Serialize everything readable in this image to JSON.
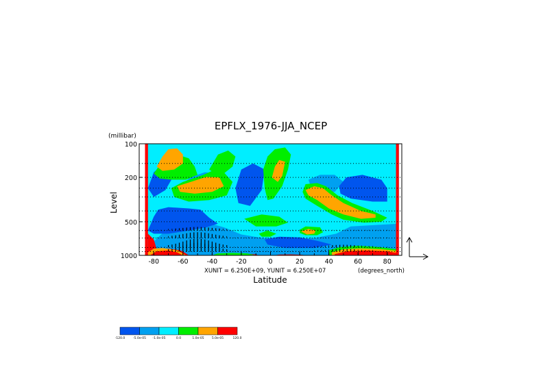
{
  "chart_data": {
    "type": "heatmap",
    "title": "EPFLX_1976-JJA_NCEP",
    "xlabel": "Latitude",
    "ylabel": "Level",
    "y_unit_label": "(millibar)",
    "x_unit_label": "(degrees_north)",
    "vector_scale_text": "XUNIT = 6.250E+09, YUNIT = 6.250E+07",
    "x_range": [
      -90,
      90
    ],
    "y_range": [
      1000,
      100
    ],
    "y_scale": "log",
    "grid": true,
    "x_ticks": [
      {
        "value": -80,
        "label": "-80"
      },
      {
        "value": -60,
        "label": "-60"
      },
      {
        "value": -40,
        "label": "-40"
      },
      {
        "value": -20,
        "label": "-20"
      },
      {
        "value": 0,
        "label": "0"
      },
      {
        "value": 20,
        "label": "20"
      },
      {
        "value": 40,
        "label": "40"
      },
      {
        "value": 60,
        "label": "60"
      },
      {
        "value": 80,
        "label": "80"
      }
    ],
    "y_ticks": [
      {
        "value": 100,
        "label": "100"
      },
      {
        "value": 200,
        "label": "200"
      },
      {
        "value": 500,
        "label": "500"
      },
      {
        "value": 1000,
        "label": "1000"
      }
    ],
    "levels_mb": [
      1000,
      925,
      850,
      700,
      600,
      500,
      400,
      300,
      250,
      200,
      150,
      100
    ],
    "colorbar": {
      "colors": [
        "#0055ee",
        "#00a0f0",
        "#00eeff",
        "#00ee00",
        "#ffa500",
        "#ff0000"
      ],
      "labels": [
        "-120.0",
        "-5.0e-05",
        "-1.0e-05",
        "0.0",
        "1.0e-05",
        "5.0e-05",
        "120.0"
      ]
    },
    "regions": [
      {
        "c": 1,
        "pts": [
          [
            -86,
            1000
          ],
          [
            88,
            1000
          ],
          [
            88,
            100
          ],
          [
            -86,
            100
          ]
        ]
      },
      {
        "c": 2,
        "pts": [
          [
            -86,
            900
          ],
          [
            -75,
            650
          ],
          [
            -64,
            520
          ],
          [
            -46,
            500
          ],
          [
            -32,
            560
          ],
          [
            -20,
            650
          ],
          [
            -5,
            700
          ],
          [
            15,
            710
          ],
          [
            30,
            700
          ],
          [
            45,
            640
          ],
          [
            55,
            550
          ],
          [
            88,
            520
          ],
          [
            88,
            100
          ],
          [
            -86,
            100
          ]
        ]
      },
      {
        "c": 0,
        "pts": [
          [
            -84,
            600
          ],
          [
            -80,
            450
          ],
          [
            -77,
            390
          ],
          [
            -70,
            370
          ],
          [
            -56,
            380
          ],
          [
            -48,
            390
          ],
          [
            -42,
            460
          ],
          [
            -36,
            520
          ],
          [
            -44,
            560
          ],
          [
            -56,
            600
          ],
          [
            -70,
            640
          ],
          [
            -80,
            640
          ]
        ]
      },
      {
        "c": 0,
        "pts": [
          [
            -84,
            250
          ],
          [
            -80,
            180
          ],
          [
            -74,
            155
          ],
          [
            -68,
            160
          ],
          [
            -66,
            190
          ],
          [
            -72,
            260
          ],
          [
            -80,
            300
          ]
        ]
      },
      {
        "c": 0,
        "pts": [
          [
            -24,
            250
          ],
          [
            -20,
            170
          ],
          [
            -12,
            150
          ],
          [
            -4,
            170
          ],
          [
            -6,
            260
          ],
          [
            -14,
            360
          ],
          [
            -22,
            340
          ]
        ]
      },
      {
        "c": 1,
        "pts": [
          [
            -62,
            240
          ],
          [
            -55,
            200
          ],
          [
            -45,
            180
          ],
          [
            -33,
            185
          ],
          [
            -28,
            230
          ],
          [
            -36,
            300
          ],
          [
            -50,
            310
          ],
          [
            -60,
            290
          ]
        ]
      },
      {
        "c": 1,
        "pts": [
          [
            26,
            210
          ],
          [
            34,
            190
          ],
          [
            44,
            190
          ],
          [
            50,
            220
          ],
          [
            44,
            270
          ],
          [
            34,
            270
          ],
          [
            28,
            250
          ]
        ]
      },
      {
        "c": 0,
        "pts": [
          [
            47,
            240
          ],
          [
            52,
            200
          ],
          [
            63,
            190
          ],
          [
            76,
            210
          ],
          [
            80,
            250
          ],
          [
            80,
            330
          ],
          [
            70,
            330
          ],
          [
            55,
            310
          ],
          [
            48,
            280
          ]
        ]
      },
      {
        "c": 0,
        "pts": [
          [
            -4,
            720
          ],
          [
            6,
            680
          ],
          [
            20,
            690
          ],
          [
            32,
            740
          ],
          [
            42,
            800
          ],
          [
            30,
            860
          ],
          [
            10,
            860
          ],
          [
            -2,
            800
          ]
        ]
      },
      {
        "c": 3,
        "pts": [
          [
            -80,
            185
          ],
          [
            -76,
            155
          ],
          [
            -70,
            135
          ],
          [
            -64,
            125
          ],
          [
            -56,
            135
          ],
          [
            -52,
            160
          ],
          [
            -50,
            190
          ],
          [
            -58,
            210
          ],
          [
            -68,
            210
          ],
          [
            -76,
            205
          ]
        ]
      },
      {
        "c": 4,
        "pts": [
          [
            -78,
            160
          ],
          [
            -74,
            130
          ],
          [
            -70,
            112
          ],
          [
            -64,
            110
          ],
          [
            -60,
            125
          ],
          [
            -60,
            150
          ],
          [
            -66,
            170
          ],
          [
            -74,
            175
          ]
        ]
      },
      {
        "c": 3,
        "pts": [
          [
            -68,
            250
          ],
          [
            -60,
            220
          ],
          [
            -46,
            190
          ],
          [
            -38,
            170
          ],
          [
            -32,
            180
          ],
          [
            -26,
            220
          ],
          [
            -30,
            290
          ],
          [
            -42,
            320
          ],
          [
            -56,
            330
          ],
          [
            -66,
            300
          ]
        ]
      },
      {
        "c": 4,
        "pts": [
          [
            -64,
            240
          ],
          [
            -54,
            218
          ],
          [
            -44,
            198
          ],
          [
            -35,
            200
          ],
          [
            -32,
            240
          ],
          [
            -40,
            270
          ],
          [
            -52,
            280
          ],
          [
            -62,
            270
          ]
        ]
      },
      {
        "c": 3,
        "pts": [
          [
            -42,
            170
          ],
          [
            -36,
            125
          ],
          [
            -29,
            115
          ],
          [
            -24,
            130
          ],
          [
            -26,
            160
          ],
          [
            -32,
            185
          ],
          [
            -38,
            185
          ]
        ]
      },
      {
        "c": 3,
        "pts": [
          [
            -5,
            170
          ],
          [
            -2,
            130
          ],
          [
            3,
            112
          ],
          [
            10,
            108
          ],
          [
            14,
            125
          ],
          [
            12,
            170
          ],
          [
            8,
            240
          ],
          [
            2,
            310
          ],
          [
            -2,
            320
          ],
          [
            -4,
            250
          ]
        ]
      },
      {
        "c": 4,
        "pts": [
          [
            1,
            200
          ],
          [
            3,
            160
          ],
          [
            6,
            140
          ],
          [
            10,
            145
          ],
          [
            8,
            195
          ],
          [
            5,
            220
          ]
        ]
      },
      {
        "c": 3,
        "pts": [
          [
            -18,
            470
          ],
          [
            -6,
            430
          ],
          [
            6,
            450
          ],
          [
            12,
            510
          ],
          [
            4,
            550
          ],
          [
            -10,
            550
          ]
        ]
      },
      {
        "c": 3,
        "pts": [
          [
            -8,
            640
          ],
          [
            -2,
            600
          ],
          [
            4,
            640
          ],
          [
            0,
            680
          ],
          [
            -6,
            680
          ]
        ]
      },
      {
        "c": 3,
        "pts": [
          [
            20,
            590
          ],
          [
            24,
            550
          ],
          [
            34,
            560
          ],
          [
            36,
            620
          ],
          [
            32,
            660
          ],
          [
            24,
            660
          ],
          [
            20,
            630
          ]
        ]
      },
      {
        "c": 4,
        "pts": [
          [
            21,
            610
          ],
          [
            26,
            580
          ],
          [
            31,
            600
          ],
          [
            30,
            640
          ],
          [
            25,
            650
          ]
        ]
      },
      {
        "c": 3,
        "pts": [
          [
            22,
            270
          ],
          [
            24,
            230
          ],
          [
            32,
            225
          ],
          [
            38,
            240
          ],
          [
            46,
            290
          ],
          [
            56,
            340
          ],
          [
            70,
            400
          ],
          [
            80,
            460
          ],
          [
            76,
            500
          ],
          [
            64,
            510
          ],
          [
            50,
            480
          ],
          [
            42,
            430
          ],
          [
            32,
            360
          ],
          [
            24,
            310
          ]
        ]
      },
      {
        "c": 4,
        "pts": [
          [
            24,
            260
          ],
          [
            30,
            240
          ],
          [
            36,
            250
          ],
          [
            42,
            290
          ],
          [
            50,
            340
          ],
          [
            62,
            400
          ],
          [
            72,
            430
          ],
          [
            72,
            460
          ],
          [
            62,
            470
          ],
          [
            50,
            430
          ],
          [
            40,
            380
          ],
          [
            32,
            320
          ],
          [
            26,
            290
          ]
        ]
      },
      {
        "c": 3,
        "pts": [
          [
            40,
            900
          ],
          [
            48,
            840
          ],
          [
            60,
            820
          ],
          [
            74,
            840
          ],
          [
            86,
            880
          ],
          [
            86,
            1000
          ],
          [
            40,
            1000
          ]
        ]
      },
      {
        "c": 4,
        "pts": [
          [
            42,
            940
          ],
          [
            50,
            880
          ],
          [
            62,
            865
          ],
          [
            76,
            880
          ],
          [
            86,
            910
          ],
          [
            86,
            1000
          ],
          [
            42,
            1000
          ]
        ]
      },
      {
        "c": 5,
        "pts": [
          [
            44,
            975
          ],
          [
            52,
            920
          ],
          [
            66,
            905
          ],
          [
            80,
            920
          ],
          [
            86,
            950
          ],
          [
            86,
            1000
          ],
          [
            44,
            1000
          ]
        ]
      },
      {
        "c": 5,
        "pts": [
          [
            -86,
            100
          ],
          [
            -84,
            100
          ],
          [
            -84,
            1000
          ],
          [
            -86,
            1000
          ]
        ]
      },
      {
        "c": 5,
        "pts": [
          [
            86,
            100
          ],
          [
            88,
            100
          ],
          [
            88,
            1000
          ],
          [
            86,
            1000
          ]
        ]
      },
      {
        "c": 5,
        "pts": [
          [
            -84,
            640
          ],
          [
            -80,
            720
          ],
          [
            -78,
            880
          ],
          [
            -70,
            870
          ],
          [
            -62,
            900
          ],
          [
            -58,
            960
          ],
          [
            -56,
            1000
          ],
          [
            -84,
            1000
          ]
        ]
      },
      {
        "c": 4,
        "pts": [
          [
            -84,
            940
          ],
          [
            -80,
            870
          ],
          [
            -74,
            860
          ],
          [
            -64,
            900
          ],
          [
            -60,
            960
          ],
          [
            -58,
            1000
          ],
          [
            -84,
            1000
          ]
        ]
      },
      {
        "c": 5,
        "pts": [
          [
            -82,
            990
          ],
          [
            -78,
            920
          ],
          [
            -70,
            905
          ],
          [
            -64,
            940
          ],
          [
            -60,
            1000
          ],
          [
            -82,
            1000
          ]
        ]
      },
      {
        "c": 5,
        "pts": [
          [
            -32,
            1000
          ],
          [
            -28,
            975
          ],
          [
            -20,
            965
          ],
          [
            -10,
            980
          ],
          [
            -8,
            1000
          ]
        ]
      },
      {
        "c": 5,
        "pts": [
          [
            2,
            1000
          ],
          [
            6,
            985
          ],
          [
            14,
            980
          ],
          [
            22,
            990
          ],
          [
            24,
            1000
          ]
        ]
      },
      {
        "c": 3,
        "pts": [
          [
            -40,
            1000
          ],
          [
            -36,
            960
          ],
          [
            -26,
            950
          ],
          [
            -16,
            960
          ],
          [
            -10,
            1000
          ]
        ]
      }
    ],
    "missing_region": {
      "pts": [
        [
          -90,
          100
        ],
        [
          -86,
          100
        ],
        [
          -86,
          1000
        ],
        [
          -90,
          1000
        ]
      ]
    }
  }
}
